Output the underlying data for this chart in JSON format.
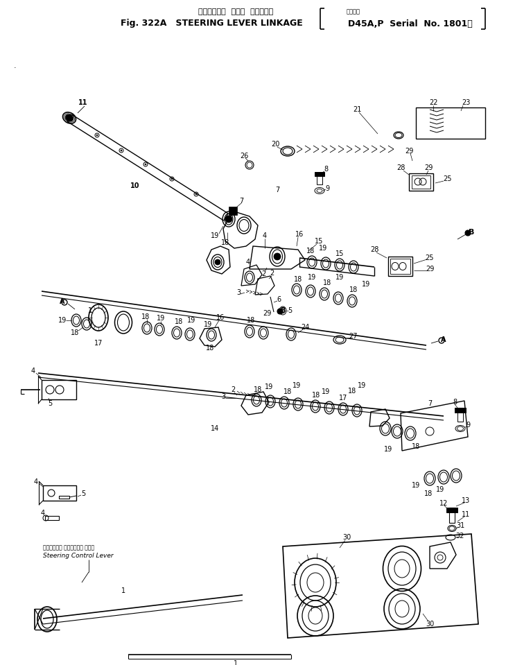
{
  "title_jp": "ステアリング  レバー  リンケージ",
  "title_fig": "Fig. 322A   STEERING LEVER LINKAGE",
  "title_model_jp": "適用号機",
  "title_model": "D45A,P  Serial  No. 1801～",
  "bg_color": "#ffffff",
  "lc": "#000000",
  "fig_width": 7.3,
  "fig_height": 9.59,
  "dpi": 100
}
